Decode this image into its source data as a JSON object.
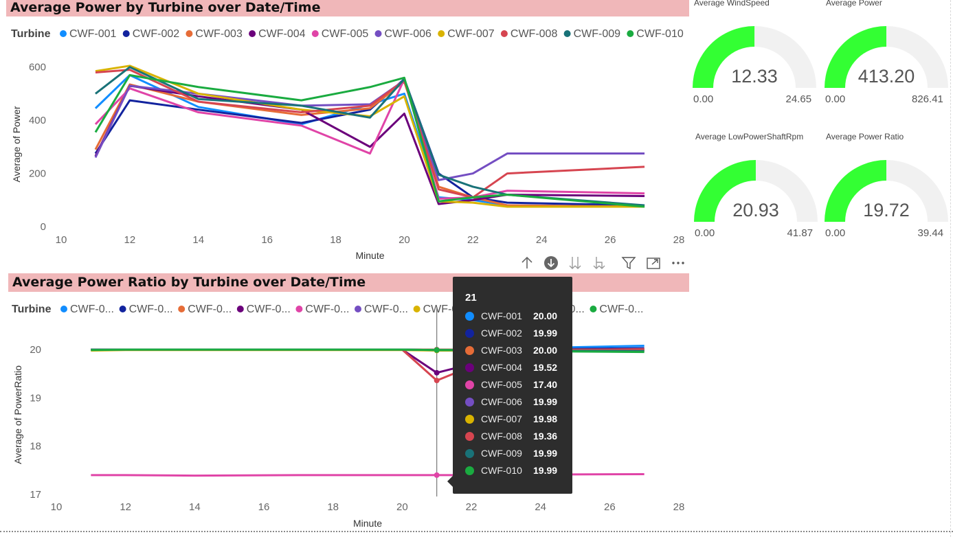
{
  "colors": {
    "title_bar": "#f0b7b9",
    "gauge_fill": "#33ff33",
    "gauge_track": "#f1f1f1",
    "tooltip_bg": "#2d2d2d"
  },
  "chart_power": {
    "title": "Average Power by Turbine over Date/Time",
    "legend_label": "Turbine",
    "legend_names": [
      "CWF-001",
      "CWF-002",
      "CWF-003",
      "CWF-004",
      "CWF-005",
      "CWF-006",
      "CWF-007",
      "CWF-008",
      "CWF-009",
      "CWF-010"
    ]
  },
  "chart_ratio": {
    "title": "Average Power Ratio by Turbine over Date/Time",
    "legend_label": "Turbine",
    "legend_names": [
      "CWF-0...",
      "CWF-0...",
      "CWF-0...",
      "CWF-0...",
      "CWF-0...",
      "CWF-0...",
      "CWF-0...",
      "CWF-0...",
      "CWF-0...",
      "CWF-0..."
    ]
  },
  "chart_data": [
    {
      "type": "line",
      "title": "Average Power by Turbine over Date/Time",
      "xlabel": "Minute",
      "ylabel": "Average of Power",
      "xlim": [
        10,
        28
      ],
      "ylim": [
        0,
        620
      ],
      "xticks": [
        10,
        12,
        14,
        16,
        18,
        20,
        22,
        24,
        26,
        28
      ],
      "yticks": [
        0,
        200,
        400,
        600
      ],
      "x": [
        11,
        12,
        14,
        17,
        19,
        20,
        21,
        22,
        23,
        27
      ],
      "series": [
        {
          "name": "CWF-001",
          "color": "#118dff",
          "values": [
            445,
            570,
            450,
            385,
            460,
            500,
            110,
            100,
            80,
            75
          ]
        },
        {
          "name": "CWF-002",
          "color": "#12239e",
          "values": [
            275,
            475,
            440,
            390,
            440,
            555,
            200,
            110,
            90,
            80
          ]
        },
        {
          "name": "CWF-003",
          "color": "#e66c37",
          "values": [
            290,
            535,
            470,
            420,
            445,
            545,
            150,
            110,
            80,
            75
          ]
        },
        {
          "name": "CWF-004",
          "color": "#6b007b",
          "values": [
            265,
            530,
            490,
            440,
            300,
            425,
            85,
            100,
            120,
            115
          ]
        },
        {
          "name": "CWF-005",
          "color": "#e044a7",
          "values": [
            385,
            520,
            430,
            380,
            275,
            555,
            105,
            110,
            135,
            125
          ]
        },
        {
          "name": "CWF-006",
          "color": "#744ec2",
          "values": [
            260,
            530,
            500,
            455,
            460,
            550,
            175,
            200,
            275,
            275
          ]
        },
        {
          "name": "CWF-007",
          "color": "#d9b300",
          "values": [
            585,
            605,
            500,
            440,
            415,
            490,
            95,
            90,
            75,
            75
          ]
        },
        {
          "name": "CWF-008",
          "color": "#d64550",
          "values": [
            580,
            590,
            470,
            430,
            455,
            550,
            140,
            110,
            200,
            225
          ]
        },
        {
          "name": "CWF-009",
          "color": "#197278",
          "values": [
            500,
            600,
            480,
            455,
            410,
            555,
            195,
            150,
            120,
            80
          ]
        },
        {
          "name": "CWF-010",
          "color": "#1aab40",
          "values": [
            355,
            570,
            525,
            475,
            525,
            560,
            95,
            110,
            120,
            75
          ]
        }
      ]
    },
    {
      "type": "line",
      "title": "Average Power Ratio by Turbine over Date/Time",
      "xlabel": "Minute",
      "ylabel": "Average of PowerRatio",
      "xlim": [
        10,
        28
      ],
      "ylim": [
        17,
        20.3
      ],
      "xticks": [
        10,
        12,
        14,
        16,
        18,
        20,
        22,
        24,
        26,
        28
      ],
      "yticks": [
        17,
        18,
        19,
        20
      ],
      "x": [
        11,
        12,
        14,
        17,
        19,
        20,
        21,
        22,
        23,
        27
      ],
      "series": [
        {
          "name": "CWF-001",
          "color": "#118dff",
          "values": [
            20.0,
            20.0,
            20.0,
            20.0,
            20.0,
            20.0,
            20.0,
            20.0,
            20.02,
            20.08
          ]
        },
        {
          "name": "CWF-002",
          "color": "#12239e",
          "values": [
            20.0,
            20.0,
            20.0,
            20.0,
            20.0,
            20.0,
            19.99,
            19.99,
            20.0,
            20.03
          ]
        },
        {
          "name": "CWF-003",
          "color": "#e66c37",
          "values": [
            20.0,
            20.0,
            20.0,
            20.0,
            20.0,
            20.0,
            20.0,
            20.0,
            20.0,
            20.0
          ]
        },
        {
          "name": "CWF-004",
          "color": "#6b007b",
          "values": [
            20.0,
            20.0,
            20.0,
            20.0,
            20.0,
            20.0,
            19.52,
            19.7,
            19.95,
            20.0
          ]
        },
        {
          "name": "CWF-005",
          "color": "#e044a7",
          "values": [
            17.4,
            17.4,
            17.39,
            17.4,
            17.4,
            17.4,
            17.4,
            17.4,
            17.41,
            17.42
          ]
        },
        {
          "name": "CWF-006",
          "color": "#744ec2",
          "values": [
            20.0,
            20.0,
            20.0,
            20.0,
            20.0,
            20.0,
            19.99,
            19.99,
            19.99,
            19.98
          ]
        },
        {
          "name": "CWF-007",
          "color": "#d9b300",
          "values": [
            19.98,
            19.99,
            19.99,
            19.99,
            19.99,
            19.99,
            19.98,
            19.98,
            19.98,
            19.98
          ]
        },
        {
          "name": "CWF-008",
          "color": "#d64550",
          "values": [
            20.0,
            20.0,
            20.0,
            20.0,
            20.0,
            20.0,
            19.36,
            19.65,
            19.98,
            20.01
          ]
        },
        {
          "name": "CWF-009",
          "color": "#197278",
          "values": [
            20.0,
            20.0,
            20.0,
            20.0,
            20.0,
            20.0,
            19.99,
            19.99,
            19.98,
            19.97
          ]
        },
        {
          "name": "CWF-010",
          "color": "#1aab40",
          "values": [
            19.99,
            20.0,
            20.0,
            20.0,
            20.0,
            20.0,
            19.99,
            19.99,
            19.97,
            19.95
          ]
        }
      ]
    }
  ],
  "tooltip": {
    "title": "21",
    "rows": [
      {
        "name": "CWF-001",
        "value": "20.00",
        "color": "#118dff"
      },
      {
        "name": "CWF-002",
        "value": "19.99",
        "color": "#12239e"
      },
      {
        "name": "CWF-003",
        "value": "20.00",
        "color": "#e66c37"
      },
      {
        "name": "CWF-004",
        "value": "19.52",
        "color": "#6b007b"
      },
      {
        "name": "CWF-005",
        "value": "17.40",
        "color": "#e044a7"
      },
      {
        "name": "CWF-006",
        "value": "19.99",
        "color": "#744ec2"
      },
      {
        "name": "CWF-007",
        "value": "19.98",
        "color": "#d9b300"
      },
      {
        "name": "CWF-008",
        "value": "19.36",
        "color": "#d64550"
      },
      {
        "name": "CWF-009",
        "value": "19.99",
        "color": "#197278"
      },
      {
        "name": "CWF-010",
        "value": "19.99",
        "color": "#1aab40"
      }
    ]
  },
  "toolbar": {
    "icons": [
      "arrow-up-icon",
      "drill-down-icon",
      "expand-next-level-icon",
      "expand-hierarchy-icon",
      "filter-icon",
      "focus-mode-icon",
      "more-options-icon"
    ]
  },
  "gauges": [
    {
      "title": "Average WindSpeed",
      "value": 12.33,
      "display": "12.33",
      "min": "0.00",
      "max": "24.65",
      "min_value": 0,
      "max_value": 24.65
    },
    {
      "title": "Average Power",
      "value": 413.2,
      "display": "413.20",
      "min": "0.00",
      "max": "826.41",
      "min_value": 0,
      "max_value": 826.41
    },
    {
      "title": "Average LowPowerShaftRpm",
      "value": 20.93,
      "display": "20.93",
      "min": "0.00",
      "max": "41.87",
      "min_value": 0,
      "max_value": 41.87
    },
    {
      "title": "Average Power Ratio",
      "value": 19.72,
      "display": "19.72",
      "min": "0.00",
      "max": "39.44",
      "min_value": 0,
      "max_value": 39.44
    }
  ]
}
